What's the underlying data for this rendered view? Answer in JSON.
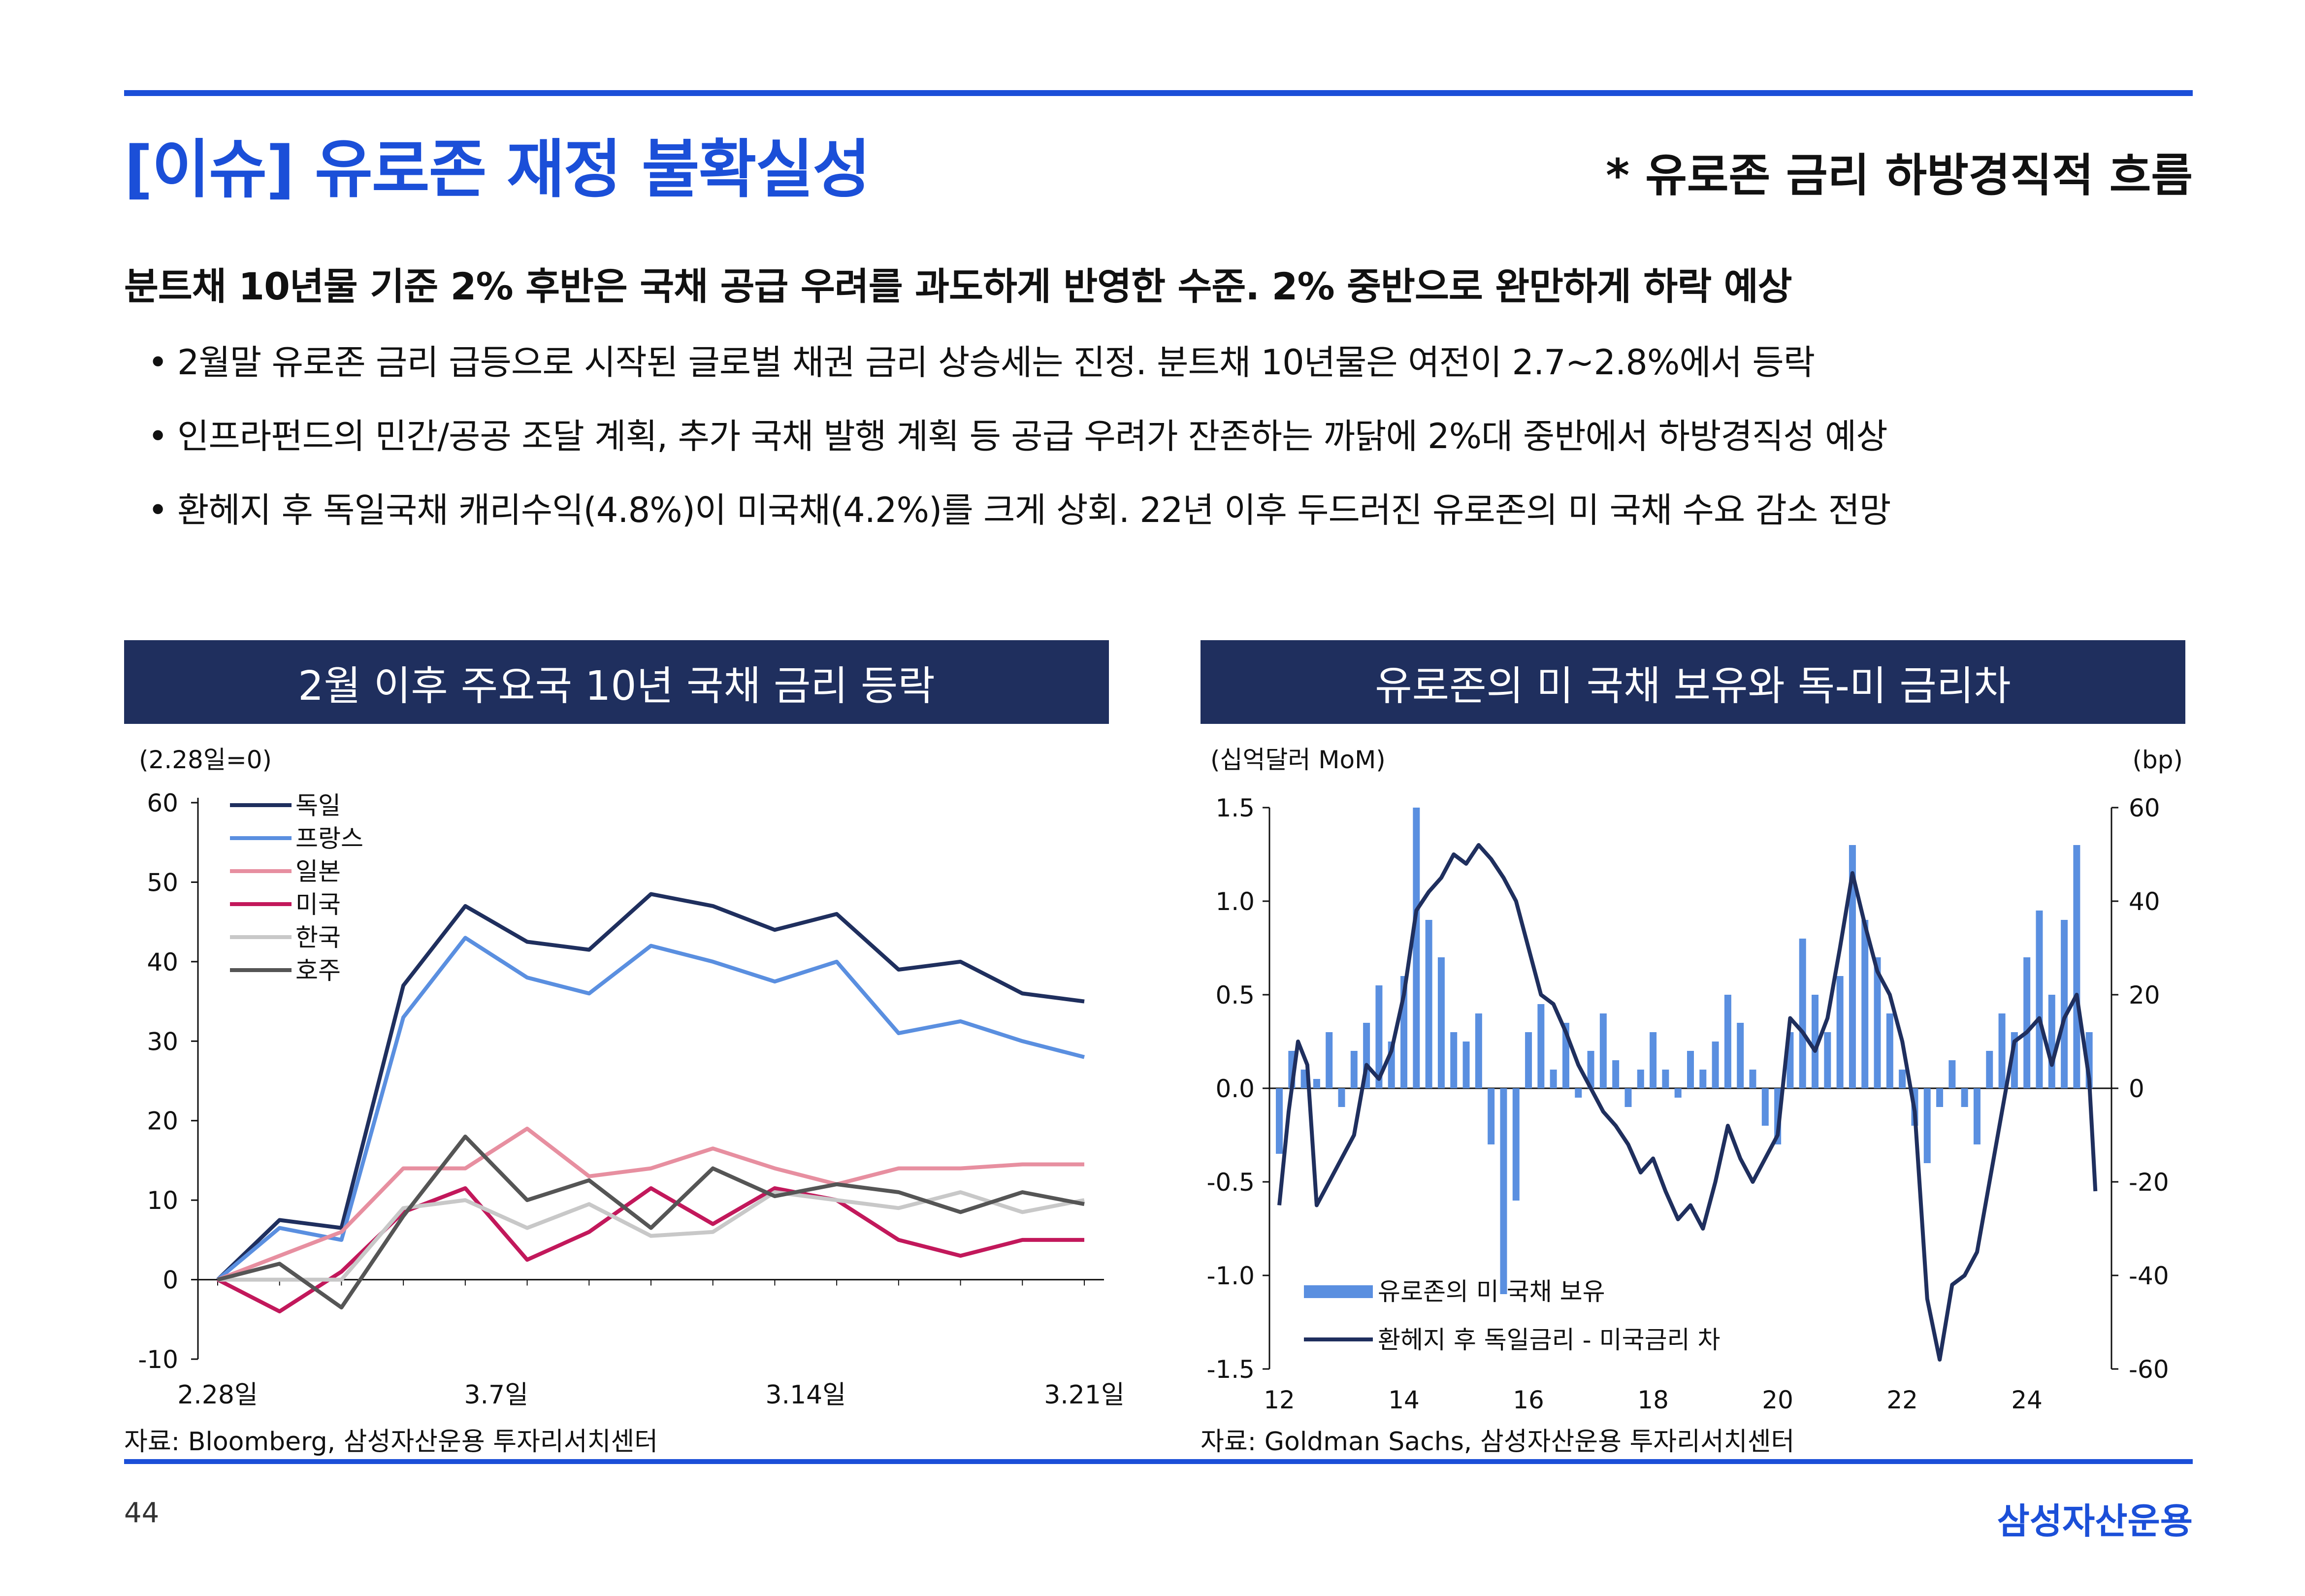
{
  "header": {
    "title": "[이슈] 유로존 재정 불확실성",
    "note": "* 유로존 금리 하방경직적 흐름"
  },
  "headline": "분트채 10년물 기준 2% 후반은 국채 공급 우려를 과도하게 반영한 수준. 2% 중반으로 완만하게 하락 예상",
  "bullets": [
    "2월말 유로존 금리 급등으로 시작된 글로벌 채권 금리 상승세는 진정. 분트채 10년물은 여전이 2.7~2.8%에서 등락",
    "인프라펀드의 민간/공공 조달 계획, 추가 국채 발행 계획 등 공급 우려가 잔존하는 까닭에 2%대 중반에서 하방경직성 예상",
    "환헤지 후 독일국채 캐리수익(4.8%)이 미국채(4.2%)를 크게 상회. 22년 이후 두드러진 유로존의 미 국채 수요 감소 전망"
  ],
  "bullet_marker": "•",
  "left_panel": {
    "heading": "2월 이후 주요국 10년 국채 금리 등락",
    "source": "자료: Bloomberg, 삼성자산운용 투자리서치센터"
  },
  "right_panel": {
    "heading": "유로존의 미 국채 보유와 독-미 금리차",
    "source": "자료: Goldman Sachs, 삼성자산운용 투자리서치센터"
  },
  "footer": {
    "page_number": "44",
    "brand": "삼성자산운용"
  },
  "chart_data": [
    {
      "type": "line",
      "unit_label": "(2.28일=0)",
      "x_tick_labels": [
        "2.28일",
        "3.7일",
        "3.14일",
        "3.21일"
      ],
      "ylim": [
        -10,
        60
      ],
      "y_ticks": [
        -10,
        0,
        10,
        20,
        30,
        40,
        50,
        60
      ],
      "legend_position": "top-left",
      "series": [
        {
          "name": "독일",
          "color": "#1f2f5e",
          "values": [
            0,
            7.5,
            6.5,
            37,
            47,
            42.5,
            41.5,
            48.5,
            47,
            44,
            46,
            39,
            40,
            36,
            35
          ]
        },
        {
          "name": "프랑스",
          "color": "#5a8fe0",
          "values": [
            0,
            6.5,
            5,
            33,
            43,
            38,
            36,
            42,
            40,
            37.5,
            40,
            31,
            32.5,
            30,
            28
          ]
        },
        {
          "name": "일본",
          "color": "#e78fa0",
          "values": [
            0,
            3,
            6,
            14,
            14,
            19,
            13,
            14,
            16.5,
            14,
            12,
            14,
            14,
            14.5,
            14.5
          ]
        },
        {
          "name": "미국",
          "color": "#c2185b",
          "values": [
            0,
            -4,
            1,
            8.5,
            11.5,
            2.5,
            6,
            11.5,
            7,
            11.5,
            10,
            5,
            3,
            5,
            5
          ]
        },
        {
          "name": "한국",
          "color": "#c8c8c8",
          "values": [
            0,
            0,
            0,
            9,
            10,
            6.5,
            9.5,
            5.5,
            6,
            11,
            10,
            9,
            11,
            8.5,
            10
          ]
        },
        {
          "name": "호주",
          "color": "#555555",
          "values": [
            0,
            2,
            -3.5,
            8,
            18,
            10,
            12.5,
            6.5,
            14,
            10.5,
            12,
            11,
            8.5,
            11,
            9.5
          ]
        }
      ]
    },
    {
      "type": "bar+line",
      "left_unit_label": "(십억달러 MoM)",
      "right_unit_label": "(bp)",
      "x_tick_labels": [
        "12",
        "14",
        "16",
        "18",
        "20",
        "22",
        "24"
      ],
      "x_range": [
        2012,
        2025.2
      ],
      "ylim_left": [
        -1.5,
        1.5
      ],
      "y_ticks_left": [
        "1.5",
        "1.0",
        "0.5",
        "0.0",
        "-0.5",
        "-1.0",
        "-1.5"
      ],
      "ylim_right": [
        -60,
        60
      ],
      "y_ticks_right": [
        "60",
        "40",
        "20",
        "0",
        "-20",
        "-40",
        "-60"
      ],
      "legend_position": "bottom-left",
      "series": [
        {
          "name": "유로존의 미 국채 보유",
          "kind": "bar",
          "axis": "left",
          "color": "#5a8fe0",
          "points": [
            [
              2012.0,
              -0.35
            ],
            [
              2012.2,
              0.2
            ],
            [
              2012.4,
              0.1
            ],
            [
              2012.6,
              0.05
            ],
            [
              2012.8,
              0.3
            ],
            [
              2013.0,
              -0.1
            ],
            [
              2013.2,
              0.2
            ],
            [
              2013.4,
              0.35
            ],
            [
              2013.6,
              0.55
            ],
            [
              2013.8,
              0.25
            ],
            [
              2014.0,
              0.6
            ],
            [
              2014.2,
              1.5
            ],
            [
              2014.4,
              0.9
            ],
            [
              2014.6,
              0.7
            ],
            [
              2014.8,
              0.3
            ],
            [
              2015.0,
              0.25
            ],
            [
              2015.2,
              0.4
            ],
            [
              2015.4,
              -0.3
            ],
            [
              2015.6,
              -1.1
            ],
            [
              2015.8,
              -0.6
            ],
            [
              2016.0,
              0.3
            ],
            [
              2016.2,
              0.45
            ],
            [
              2016.4,
              0.1
            ],
            [
              2016.6,
              0.35
            ],
            [
              2016.8,
              -0.05
            ],
            [
              2017.0,
              0.2
            ],
            [
              2017.2,
              0.4
            ],
            [
              2017.4,
              0.15
            ],
            [
              2017.6,
              -0.1
            ],
            [
              2017.8,
              0.1
            ],
            [
              2018.0,
              0.3
            ],
            [
              2018.2,
              0.1
            ],
            [
              2018.4,
              -0.05
            ],
            [
              2018.6,
              0.2
            ],
            [
              2018.8,
              0.1
            ],
            [
              2019.0,
              0.25
            ],
            [
              2019.2,
              0.5
            ],
            [
              2019.4,
              0.35
            ],
            [
              2019.6,
              0.1
            ],
            [
              2019.8,
              -0.2
            ],
            [
              2020.0,
              -0.3
            ],
            [
              2020.2,
              0.3
            ],
            [
              2020.4,
              0.8
            ],
            [
              2020.6,
              0.5
            ],
            [
              2020.8,
              0.3
            ],
            [
              2021.0,
              0.6
            ],
            [
              2021.2,
              1.3
            ],
            [
              2021.4,
              0.9
            ],
            [
              2021.6,
              0.7
            ],
            [
              2021.8,
              0.4
            ],
            [
              2022.0,
              0.1
            ],
            [
              2022.2,
              -0.2
            ],
            [
              2022.4,
              -0.4
            ],
            [
              2022.6,
              -0.1
            ],
            [
              2022.8,
              0.15
            ],
            [
              2023.0,
              -0.1
            ],
            [
              2023.2,
              -0.3
            ],
            [
              2023.4,
              0.2
            ],
            [
              2023.6,
              0.4
            ],
            [
              2023.8,
              0.3
            ],
            [
              2024.0,
              0.7
            ],
            [
              2024.2,
              0.95
            ],
            [
              2024.4,
              0.5
            ],
            [
              2024.6,
              0.9
            ],
            [
              2024.8,
              1.3
            ],
            [
              2025.0,
              0.3
            ]
          ]
        },
        {
          "name": "환헤지 후 독일금리 - 미국금리 차",
          "kind": "line",
          "axis": "right",
          "color": "#1f2f5e",
          "points": [
            [
              2012.0,
              -25
            ],
            [
              2012.15,
              -5
            ],
            [
              2012.3,
              10
            ],
            [
              2012.45,
              5
            ],
            [
              2012.6,
              -25
            ],
            [
              2012.8,
              -20
            ],
            [
              2013.0,
              -15
            ],
            [
              2013.2,
              -10
            ],
            [
              2013.4,
              5
            ],
            [
              2013.6,
              2
            ],
            [
              2013.8,
              8
            ],
            [
              2014.0,
              20
            ],
            [
              2014.2,
              38
            ],
            [
              2014.4,
              42
            ],
            [
              2014.6,
              45
            ],
            [
              2014.8,
              50
            ],
            [
              2015.0,
              48
            ],
            [
              2015.2,
              52
            ],
            [
              2015.4,
              49
            ],
            [
              2015.6,
              45
            ],
            [
              2015.8,
              40
            ],
            [
              2016.0,
              30
            ],
            [
              2016.2,
              20
            ],
            [
              2016.4,
              18
            ],
            [
              2016.6,
              12
            ],
            [
              2016.8,
              5
            ],
            [
              2017.0,
              0
            ],
            [
              2017.2,
              -5
            ],
            [
              2017.4,
              -8
            ],
            [
              2017.6,
              -12
            ],
            [
              2017.8,
              -18
            ],
            [
              2018.0,
              -15
            ],
            [
              2018.2,
              -22
            ],
            [
              2018.4,
              -28
            ],
            [
              2018.6,
              -25
            ],
            [
              2018.8,
              -30
            ],
            [
              2019.0,
              -20
            ],
            [
              2019.2,
              -8
            ],
            [
              2019.4,
              -15
            ],
            [
              2019.6,
              -20
            ],
            [
              2019.8,
              -15
            ],
            [
              2020.0,
              -10
            ],
            [
              2020.2,
              15
            ],
            [
              2020.4,
              12
            ],
            [
              2020.6,
              8
            ],
            [
              2020.8,
              15
            ],
            [
              2021.0,
              30
            ],
            [
              2021.2,
              46
            ],
            [
              2021.4,
              35
            ],
            [
              2021.6,
              25
            ],
            [
              2021.8,
              20
            ],
            [
              2022.0,
              10
            ],
            [
              2022.2,
              -5
            ],
            [
              2022.4,
              -45
            ],
            [
              2022.6,
              -58
            ],
            [
              2022.8,
              -42
            ],
            [
              2023.0,
              -40
            ],
            [
              2023.2,
              -35
            ],
            [
              2023.4,
              -20
            ],
            [
              2023.6,
              -5
            ],
            [
              2023.8,
              10
            ],
            [
              2024.0,
              12
            ],
            [
              2024.2,
              15
            ],
            [
              2024.4,
              5
            ],
            [
              2024.6,
              15
            ],
            [
              2024.8,
              20
            ],
            [
              2025.0,
              2
            ],
            [
              2025.1,
              -22
            ]
          ]
        }
      ]
    }
  ]
}
